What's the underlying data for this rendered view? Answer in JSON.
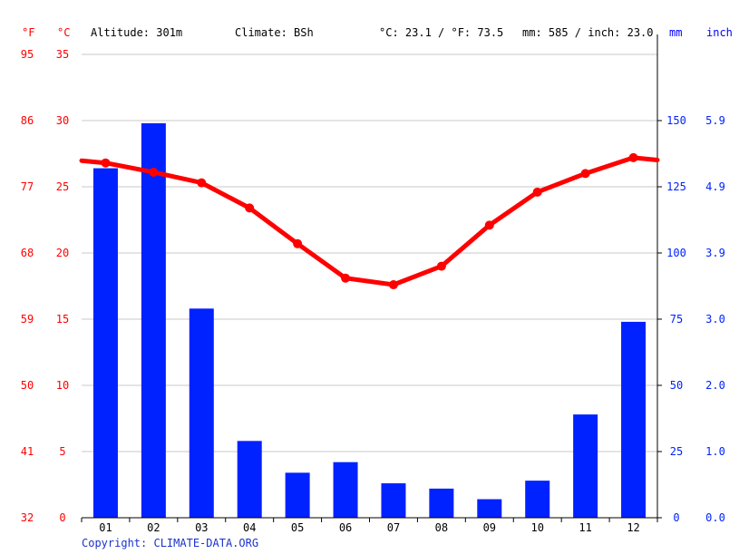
{
  "header": {
    "unit_f": "°F",
    "unit_c": "°C",
    "altitude": "Altitude: 301m",
    "climate": "Climate: BSh",
    "temp_avg": "°C: 23.1 / °F: 73.5",
    "precip_total": "mm: 585 / inch: 23.0",
    "unit_mm": "mm",
    "unit_inch": "inch"
  },
  "copyright": "Copyright: CLIMATE-DATA.ORG",
  "colors": {
    "temperature": "#ff0000",
    "precipitation": "#0022ff",
    "grid": "#c8c8c8",
    "axis": "#000000"
  },
  "chart_data": {
    "type": "bar+line",
    "categories": [
      "01",
      "02",
      "03",
      "04",
      "05",
      "06",
      "07",
      "08",
      "09",
      "10",
      "11",
      "12"
    ],
    "series": [
      {
        "values": [
          132,
          149,
          79,
          29,
          17,
          21,
          13,
          11,
          7,
          14,
          39,
          74
        ]
      },
      {
        "values": [
          26.8,
          26.1,
          25.3,
          23.4,
          20.7,
          18.1,
          17.6,
          19.0,
          22.1,
          24.6,
          26.0,
          27.2
        ]
      }
    ],
    "axes": {
      "fahrenheit_ticks": [
        "32",
        "41",
        "50",
        "59",
        "68",
        "77",
        "86",
        "95"
      ],
      "celsius_ticks": [
        "0",
        "5",
        "10",
        "15",
        "20",
        "25",
        "30",
        "35"
      ],
      "mm_ticks": [
        "0",
        "25",
        "50",
        "75",
        "100",
        "125",
        "150"
      ],
      "inch_ticks": [
        "0.0",
        "1.0",
        "2.0",
        "3.0",
        "3.9",
        "4.9",
        "5.9"
      ],
      "temperature_range_c": [
        0,
        35
      ],
      "precipitation_range_mm": [
        0,
        175
      ]
    },
    "grid": true
  }
}
